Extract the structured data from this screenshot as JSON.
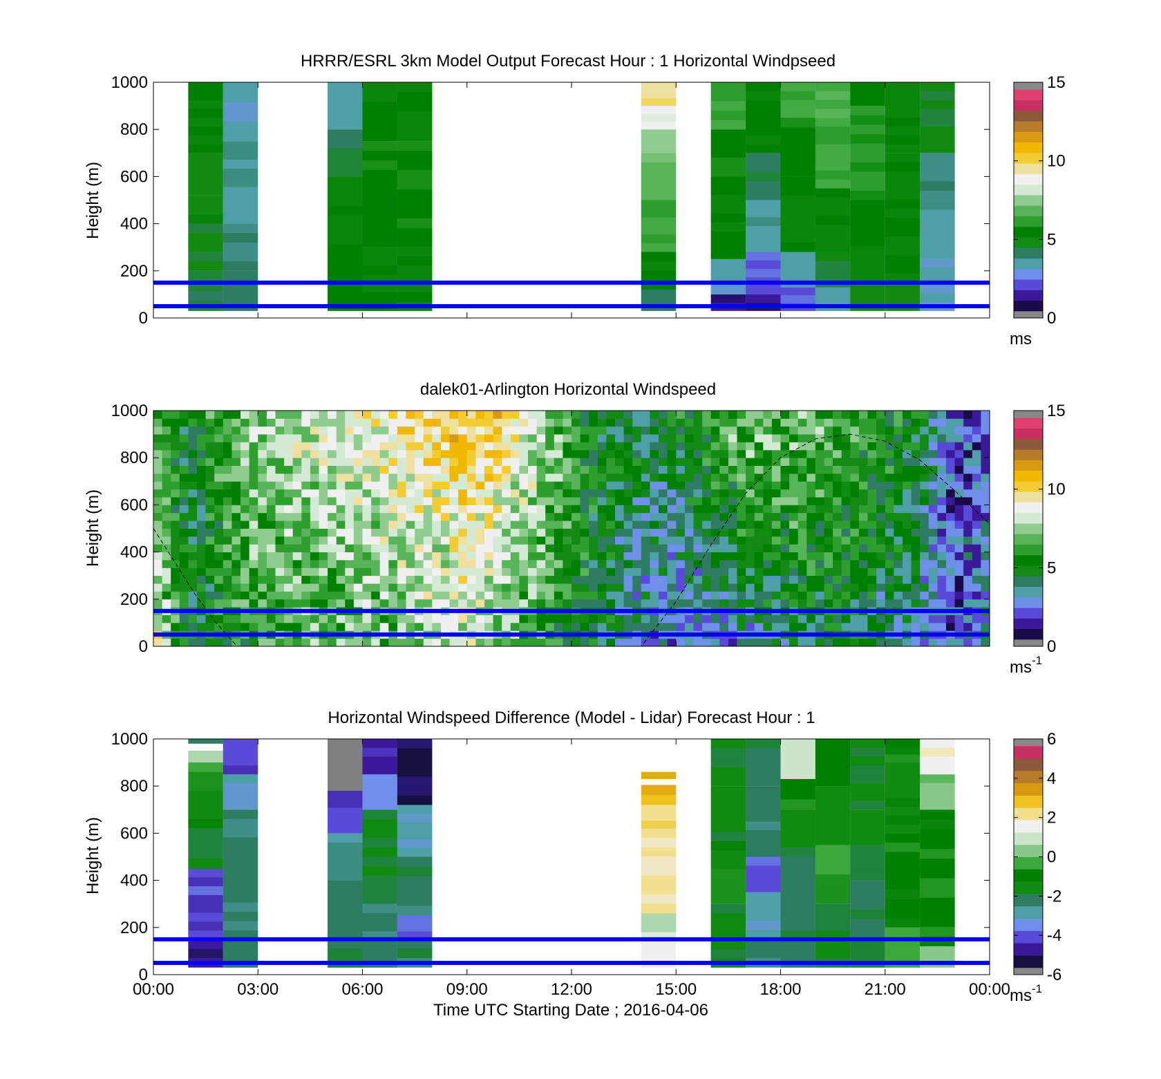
{
  "palettes": {
    "speed": [
      "#1a0a4a",
      "#3a1a9a",
      "#5a4ad8",
      "#6f90ea",
      "#4f9fa8",
      "#2e7d62",
      "#138a13",
      "#008000",
      "#2e9e2e",
      "#58b458",
      "#90cc90",
      "#d4ead4",
      "#f0f0f0",
      "#f0e0a0",
      "#f2cc30",
      "#f0b800",
      "#d89a10",
      "#b87b2a",
      "#8c5a3a",
      "#c83060",
      "#e04070"
    ],
    "diff": [
      "#141040",
      "#3a1a9a",
      "#5a4ad8",
      "#6f90ea",
      "#4f9fa8",
      "#2e7d62",
      "#108a10",
      "#008000",
      "#3ca83c",
      "#88c888",
      "#cce4cc",
      "#f0f0f0",
      "#f0e090",
      "#f0c020",
      "#d89a10",
      "#b87b2a",
      "#8c5a3a",
      "#c83060"
    ]
  },
  "chart_data": [
    {
      "type": "heatmap",
      "title": "HRRR/ESRL 3km Model Output   Forecast Hour : 1 Horizontal Windpseed",
      "ylabel": "Height (m)",
      "ylim": [
        0,
        1000
      ],
      "yticks": [
        "0",
        "200",
        "400",
        "600",
        "800",
        "1000"
      ],
      "xlim_hours": [
        0,
        24
      ],
      "colorbar": {
        "ticks": [
          "0",
          "5",
          "10",
          "15"
        ],
        "unit": "ms",
        "superscript": ""
      },
      "cmap": "speed",
      "clim": [
        0,
        15
      ],
      "reference_lines_m": [
        50,
        150
      ],
      "columns": [
        {
          "t": 1.5,
          "cells": [
            {
              "z0": 30,
              "z1": 200,
              "v": 4.2
            },
            {
              "z0": 200,
              "z1": 520,
              "v": 4.6
            },
            {
              "z0": 520,
              "z1": 700,
              "v": 4.8
            },
            {
              "z0": 700,
              "z1": 1000,
              "v": 5.0
            }
          ]
        },
        {
          "t": 2.5,
          "cells": [
            {
              "z0": 30,
              "z1": 200,
              "v": 3.9
            },
            {
              "z0": 200,
              "z1": 400,
              "v": 3.8
            },
            {
              "z0": 400,
              "z1": 750,
              "v": 3.4
            },
            {
              "z0": 750,
              "z1": 1000,
              "v": 3.1
            }
          ]
        },
        {
          "t": 5.5,
          "cells": [
            {
              "z0": 30,
              "z1": 150,
              "v": 5.0
            },
            {
              "z0": 150,
              "z1": 600,
              "v": 5.0
            },
            {
              "z0": 600,
              "z1": 800,
              "v": 4.2
            },
            {
              "z0": 800,
              "z1": 1000,
              "v": 3.3
            }
          ]
        },
        {
          "t": 6.5,
          "cells": [
            {
              "z0": 30,
              "z1": 300,
              "v": 5.0
            },
            {
              "z0": 300,
              "z1": 750,
              "v": 5.6
            },
            {
              "z0": 750,
              "z1": 1000,
              "v": 5.0
            }
          ]
        },
        {
          "t": 7.5,
          "cells": [
            {
              "z0": 30,
              "z1": 300,
              "v": 5.0
            },
            {
              "z0": 300,
              "z1": 750,
              "v": 5.5
            },
            {
              "z0": 750,
              "z1": 1000,
              "v": 5.1
            }
          ]
        },
        {
          "t": 14.5,
          "cells": [
            {
              "z0": 30,
              "z1": 120,
              "v": 3.6
            },
            {
              "z0": 120,
              "z1": 280,
              "v": 5.0
            },
            {
              "z0": 280,
              "z1": 500,
              "v": 6.2
            },
            {
              "z0": 500,
              "z1": 700,
              "v": 7.0
            },
            {
              "z0": 700,
              "z1": 800,
              "v": 7.6
            },
            {
              "z0": 800,
              "z1": 900,
              "v": 8.6
            },
            {
              "z0": 900,
              "z1": 1000,
              "v": 9.6
            }
          ]
        },
        {
          "t": 16.5,
          "cells": [
            {
              "z0": 30,
              "z1": 100,
              "v": 0.8
            },
            {
              "z0": 100,
              "z1": 250,
              "v": 3.2
            },
            {
              "z0": 250,
              "z1": 600,
              "v": 5.0
            },
            {
              "z0": 600,
              "z1": 800,
              "v": 5.6
            },
            {
              "z0": 800,
              "z1": 1000,
              "v": 6.4
            }
          ]
        },
        {
          "t": 17.5,
          "cells": [
            {
              "z0": 30,
              "z1": 100,
              "v": 1.0
            },
            {
              "z0": 100,
              "z1": 280,
              "v": 2.0
            },
            {
              "z0": 280,
              "z1": 500,
              "v": 3.3
            },
            {
              "z0": 500,
              "z1": 700,
              "v": 4.2
            },
            {
              "z0": 700,
              "z1": 1000,
              "v": 5.2
            }
          ]
        },
        {
          "t": 18.5,
          "cells": [
            {
              "z0": 30,
              "z1": 130,
              "v": 2.0
            },
            {
              "z0": 130,
              "z1": 280,
              "v": 3.4
            },
            {
              "z0": 280,
              "z1": 600,
              "v": 5.0
            },
            {
              "z0": 600,
              "z1": 850,
              "v": 5.6
            },
            {
              "z0": 850,
              "z1": 1000,
              "v": 6.4
            }
          ]
        },
        {
          "t": 19.5,
          "cells": [
            {
              "z0": 30,
              "z1": 130,
              "v": 3.1
            },
            {
              "z0": 130,
              "z1": 280,
              "v": 4.5
            },
            {
              "z0": 280,
              "z1": 550,
              "v": 5.1
            },
            {
              "z0": 550,
              "z1": 850,
              "v": 6.3
            },
            {
              "z0": 850,
              "z1": 1000,
              "v": 6.6
            }
          ]
        },
        {
          "t": 20.5,
          "cells": [
            {
              "z0": 30,
              "z1": 150,
              "v": 4.4
            },
            {
              "z0": 150,
              "z1": 500,
              "v": 5.0
            },
            {
              "z0": 500,
              "z1": 900,
              "v": 6.0
            },
            {
              "z0": 900,
              "z1": 1000,
              "v": 5.4
            }
          ]
        },
        {
          "t": 21.5,
          "cells": [
            {
              "z0": 30,
              "z1": 150,
              "v": 4.4
            },
            {
              "z0": 150,
              "z1": 700,
              "v": 5.0
            },
            {
              "z0": 700,
              "z1": 1000,
              "v": 5.0
            }
          ]
        },
        {
          "t": 22.5,
          "cells": [
            {
              "z0": 30,
              "z1": 250,
              "v": 3.0
            },
            {
              "z0": 250,
              "z1": 500,
              "v": 3.4
            },
            {
              "z0": 500,
              "z1": 700,
              "v": 3.6
            },
            {
              "z0": 700,
              "z1": 1000,
              "v": 4.4
            }
          ]
        }
      ]
    },
    {
      "type": "heatmap",
      "title": "dalek01-Arlington  Horizontal Windspeed",
      "ylabel": "Height (m)",
      "ylim": [
        0,
        1000
      ],
      "yticks": [
        "0",
        "200",
        "400",
        "600",
        "800",
        "1000"
      ],
      "xlim_hours": [
        0,
        24
      ],
      "colorbar": {
        "ticks": [
          "0",
          "5",
          "10",
          "15"
        ],
        "unit": "ms",
        "superscript": "-1"
      },
      "cmap": "speed",
      "clim": [
        0,
        15
      ],
      "reference_lines_m": [
        50,
        150
      ],
      "field_profile": {
        "hours": [
          0,
          1,
          2,
          3,
          4,
          5,
          6,
          7,
          8,
          9,
          10,
          11,
          12,
          13,
          14,
          15,
          16,
          17,
          18,
          19,
          20,
          21,
          22,
          23,
          24
        ],
        "speed_low": [
          9.5,
          4.5,
          5.0,
          6.0,
          6.5,
          6.5,
          6.5,
          7.0,
          7.5,
          8.0,
          7.0,
          6.0,
          5.0,
          4.5,
          3.0,
          2.5,
          2.5,
          3.0,
          4.0,
          4.5,
          4.5,
          4.0,
          3.0,
          1.5,
          4.0
        ],
        "speed_high": [
          6.5,
          4.5,
          6.5,
          7.5,
          8.0,
          8.5,
          9.0,
          9.5,
          10.0,
          10.5,
          10.0,
          8.5,
          6.0,
          5.0,
          4.5,
          5.0,
          6.0,
          7.5,
          7.0,
          7.0,
          6.0,
          5.5,
          5.0,
          1.5,
          2.0
        ]
      },
      "boundary_layer_curve": {
        "hours": [
          0.0,
          0.6,
          1.2,
          1.8,
          2.4,
          11.3,
          12.0,
          13.0,
          14.0,
          15.0,
          16.0,
          17.0,
          18.0,
          19.0,
          20.0,
          21.0,
          22.0,
          23.0,
          24.0
        ],
        "height_m": [
          500,
          360,
          220,
          100,
          0,
          0,
          0,
          0,
          0,
          190,
          430,
          650,
          800,
          880,
          900,
          870,
          790,
          660,
          520
        ]
      }
    },
    {
      "type": "heatmap",
      "title": "Horizontal Windspeed Difference (Model - Lidar) Forecast Hour : 1",
      "xlabel": "Time UTC  Starting Date ; 2016-04-06",
      "ylabel": "Height (m)",
      "ylim": [
        0,
        1000
      ],
      "yticks": [
        "0",
        "200",
        "400",
        "600",
        "800",
        "1000"
      ],
      "xlim_hours": [
        0,
        24
      ],
      "xticks": [
        "00:00",
        "03:00",
        "06:00",
        "09:00",
        "12:00",
        "15:00",
        "18:00",
        "21:00",
        "00:00"
      ],
      "colorbar": {
        "ticks": [
          "-6",
          "-4",
          "-2",
          "0",
          "2",
          "4",
          "6"
        ],
        "unit": "ms",
        "superscript": "-1"
      },
      "cmap": "diff",
      "clim": [
        -6,
        6
      ],
      "reference_lines_m": [
        50,
        150
      ],
      "columns": [
        {
          "t": 1.5,
          "cells": [
            {
              "z0": 30,
              "z1": 150,
              "v": -5.0
            },
            {
              "z0": 150,
              "z1": 450,
              "v": -4.4
            },
            {
              "z0": 450,
              "z1": 620,
              "v": -2.0
            },
            {
              "z0": 620,
              "z1": 780,
              "v": -1.5
            },
            {
              "z0": 780,
              "z1": 900,
              "v": -0.6
            },
            {
              "z0": 900,
              "z1": 950,
              "v": 0.5
            },
            {
              "z0": 980,
              "z1": 1000,
              "v": -2.5
            }
          ]
        },
        {
          "t": 2.5,
          "cells": [
            {
              "z0": 30,
              "z1": 700,
              "v": -2.4
            },
            {
              "z0": 700,
              "z1": 850,
              "v": -3.2
            },
            {
              "z0": 850,
              "z1": 1000,
              "v": -4.4
            }
          ]
        },
        {
          "t": 5.5,
          "cells": [
            {
              "z0": 30,
              "z1": 400,
              "v": -2.3
            },
            {
              "z0": 400,
              "z1": 600,
              "v": -2.8
            },
            {
              "z0": 600,
              "z1": 780,
              "v": -4.6
            },
            {
              "z0": 780,
              "z1": 1000,
              "v": -99
            }
          ]
        },
        {
          "t": 6.5,
          "cells": [
            {
              "z0": 30,
              "z1": 300,
              "v": -2.4
            },
            {
              "z0": 300,
              "z1": 700,
              "v": -2.0
            },
            {
              "z0": 700,
              "z1": 850,
              "v": -3.8
            },
            {
              "z0": 850,
              "z1": 1000,
              "v": -5.0
            }
          ]
        },
        {
          "t": 7.5,
          "cells": [
            {
              "z0": 30,
              "z1": 150,
              "v": -2.4
            },
            {
              "z0": 150,
              "z1": 250,
              "v": -4.2
            },
            {
              "z0": 250,
              "z1": 500,
              "v": -2.4
            },
            {
              "z0": 500,
              "z1": 720,
              "v": -3.2
            },
            {
              "z0": 720,
              "z1": 1000,
              "v": -5.4
            }
          ]
        },
        {
          "t": 14.5,
          "cells": [
            {
              "z0": 30,
              "z1": 180,
              "v": 1.5
            },
            {
              "z0": 180,
              "z1": 260,
              "v": 0.5
            },
            {
              "z0": 260,
              "z1": 620,
              "v": 2.0
            },
            {
              "z0": 620,
              "z1": 720,
              "v": 2.6
            },
            {
              "z0": 720,
              "z1": 805,
              "v": 3.2
            },
            {
              "z0": 830,
              "z1": 860,
              "v": 3.2
            }
          ]
        },
        {
          "t": 16.5,
          "cells": [
            {
              "z0": 30,
              "z1": 300,
              "v": -1.8
            },
            {
              "z0": 300,
              "z1": 450,
              "v": -0.6
            },
            {
              "z0": 450,
              "z1": 800,
              "v": -1.6
            },
            {
              "z0": 800,
              "z1": 1000,
              "v": -1.8
            }
          ]
        },
        {
          "t": 17.5,
          "cells": [
            {
              "z0": 30,
              "z1": 150,
              "v": -2.4
            },
            {
              "z0": 150,
              "z1": 350,
              "v": -3.2
            },
            {
              "z0": 350,
              "z1": 500,
              "v": -4.2
            },
            {
              "z0": 500,
              "z1": 800,
              "v": -2.5
            },
            {
              "z0": 800,
              "z1": 1000,
              "v": -2.2
            }
          ]
        },
        {
          "t": 18.5,
          "cells": [
            {
              "z0": 30,
              "z1": 500,
              "v": -2.3
            },
            {
              "z0": 500,
              "z1": 700,
              "v": -1.8
            },
            {
              "z0": 700,
              "z1": 830,
              "v": -0.8
            },
            {
              "z0": 830,
              "z1": 1000,
              "v": 1.2
            }
          ]
        },
        {
          "t": 19.5,
          "cells": [
            {
              "z0": 30,
              "z1": 300,
              "v": -2.0
            },
            {
              "z0": 300,
              "z1": 550,
              "v": -0.6
            },
            {
              "z0": 550,
              "z1": 800,
              "v": -1.5
            },
            {
              "z0": 800,
              "z1": 1000,
              "v": -1.0
            }
          ]
        },
        {
          "t": 20.5,
          "cells": [
            {
              "z0": 30,
              "z1": 400,
              "v": -2.1
            },
            {
              "z0": 400,
              "z1": 700,
              "v": -1.8
            },
            {
              "z0": 700,
              "z1": 1000,
              "v": -1.9
            }
          ]
        },
        {
          "t": 21.5,
          "cells": [
            {
              "z0": 30,
              "z1": 200,
              "v": -0.5
            },
            {
              "z0": 200,
              "z1": 600,
              "v": -1.0
            },
            {
              "z0": 600,
              "z1": 900,
              "v": -1.4
            },
            {
              "z0": 900,
              "z1": 1000,
              "v": -0.9
            }
          ]
        },
        {
          "t": 22.5,
          "cells": [
            {
              "z0": 30,
              "z1": 120,
              "v": 0.6
            },
            {
              "z0": 120,
              "z1": 450,
              "v": -0.7
            },
            {
              "z0": 450,
              "z1": 700,
              "v": -0.9
            },
            {
              "z0": 700,
              "z1": 850,
              "v": 0.2
            },
            {
              "z0": 850,
              "z1": 1000,
              "v": 1.8
            }
          ]
        }
      ]
    }
  ]
}
